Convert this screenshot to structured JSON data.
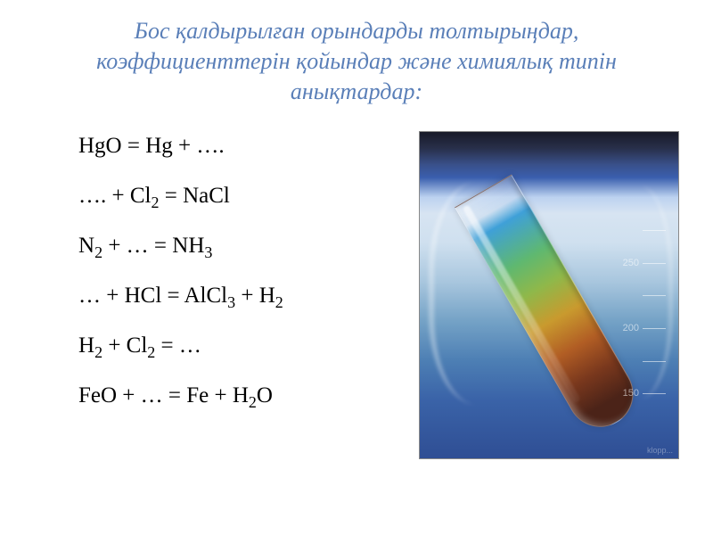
{
  "title": "Бос қалдырылған орындарды толтырыңдар, коэффициенттерін қойындар және химиялық типін анықтардар:",
  "equations": [
    {
      "html": "HgO = Hg + …."
    },
    {
      "html": "…. +  Cl<span class='sub'>2</span> = NaCl"
    },
    {
      "html": "N<span class='sub'>2</span> + … = NH<span class='sub'>3</span>"
    },
    {
      "html": "… + HCl = AlCl<span class='sub'>3</span> + H<span class='sub'>2</span>"
    },
    {
      "html": "H<span class='sub'>2</span> + Cl<span class='sub'>2</span> = …"
    },
    {
      "html": "FeO + … = Fe + H<span class='sub'>2</span>O"
    }
  ],
  "beaker": {
    "graduations": [
      {
        "top_pct": 30,
        "label": ""
      },
      {
        "top_pct": 40,
        "label": "250"
      },
      {
        "top_pct": 50,
        "label": ""
      },
      {
        "top_pct": 60,
        "label": "200"
      },
      {
        "top_pct": 70,
        "label": ""
      },
      {
        "top_pct": 80,
        "label": "150"
      }
    ],
    "watermark": "klopp..."
  },
  "colors": {
    "title_color": "#5a7fb8",
    "text_color": "#000000",
    "background": "#ffffff"
  }
}
